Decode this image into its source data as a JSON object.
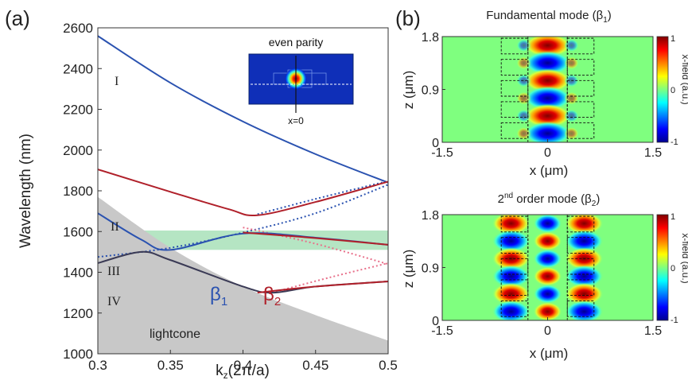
{
  "panel_a": {
    "label": "(a)",
    "xlabel": "k",
    "xlabel_sub": "z",
    "xlabel_rest": "(2π/a)",
    "ylabel": "Wavelength (nm)",
    "xlim": [
      0.3,
      0.5
    ],
    "ylim": [
      1000,
      2600
    ],
    "xticks": [
      "0.3",
      "0.35",
      "0.4",
      "0.45",
      "0.5"
    ],
    "yticks": [
      "1000",
      "1200",
      "1400",
      "1600",
      "1800",
      "2000",
      "2200",
      "2400",
      "2600"
    ],
    "band_labels": [
      "I",
      "II",
      "III",
      "IV"
    ],
    "beta1": "β",
    "beta1_sub": "1",
    "beta2": "β",
    "beta2_sub": "2",
    "lightcone_label": "lightcone",
    "inset_title": "even parity",
    "inset_xlabel": "x=0",
    "highlight_band_nm": [
      1510,
      1605
    ],
    "colors": {
      "blue": "#2a52b0",
      "red": "#b0202a",
      "lightcone": "#c8c8c8",
      "highlight": "#a8e0b8"
    }
  },
  "panel_b": {
    "label": "(b)",
    "top_title": "Fundamental mode (β",
    "top_title_sub": "1",
    "top_title_end": ")",
    "bottom_title_pre": "2",
    "bottom_title_sup": "nd",
    "bottom_title": " order mode (β",
    "bottom_title_sub": "2",
    "bottom_title_end": ")",
    "xlabel": "x (μm)",
    "ylabel": "z (μm)",
    "xticks": [
      "-1.5",
      "0",
      "1.5"
    ],
    "yticks": [
      "0",
      "0.9",
      "1.8"
    ],
    "colorbar_label": "x-field (a.u.)",
    "colorbar_ticks": [
      "1",
      "0",
      "-1"
    ]
  },
  "chart_data": [
    {
      "type": "line",
      "title": "",
      "xlabel": "kz(2π/a)",
      "ylabel": "Wavelength (nm)",
      "xlim": [
        0.3,
        0.5
      ],
      "ylim": [
        1000,
        2600
      ],
      "series": [
        {
          "name": "I",
          "x": [
            0.3,
            0.35,
            0.4,
            0.45,
            0.5
          ],
          "values": [
            2560,
            2330,
            2140,
            1980,
            1840
          ]
        },
        {
          "name": "II",
          "x": [
            0.3,
            0.35,
            0.39,
            0.41,
            0.45,
            0.5
          ],
          "values": [
            1905,
            1795,
            1710,
            1680,
            1745,
            1845
          ]
        },
        {
          "name": "III",
          "x": [
            0.3,
            0.33,
            0.35,
            0.4,
            0.45,
            0.5
          ],
          "values": [
            1690,
            1560,
            1510,
            1590,
            1570,
            1535
          ]
        },
        {
          "name": "IV",
          "x": [
            0.3,
            0.33,
            0.35,
            0.4,
            0.42,
            0.45,
            0.5
          ],
          "values": [
            1445,
            1500,
            1460,
            1330,
            1300,
            1330,
            1355
          ]
        }
      ],
      "lightcone": {
        "x": [
          0.3,
          0.35,
          0.4,
          0.45,
          0.5
        ],
        "values": [
          1770,
          1520,
          1330,
          1190,
          1065
        ]
      }
    },
    {
      "type": "heatmap",
      "title": "Fundamental mode (β1)",
      "xlim": [
        -1.5,
        1.5
      ],
      "zlim": [
        0,
        1.8
      ],
      "clim": [
        -1,
        1
      ]
    },
    {
      "type": "heatmap",
      "title": "2nd order mode (β2)",
      "xlim": [
        -1.5,
        1.5
      ],
      "zlim": [
        0,
        1.8
      ],
      "clim": [
        -1,
        1
      ]
    }
  ]
}
